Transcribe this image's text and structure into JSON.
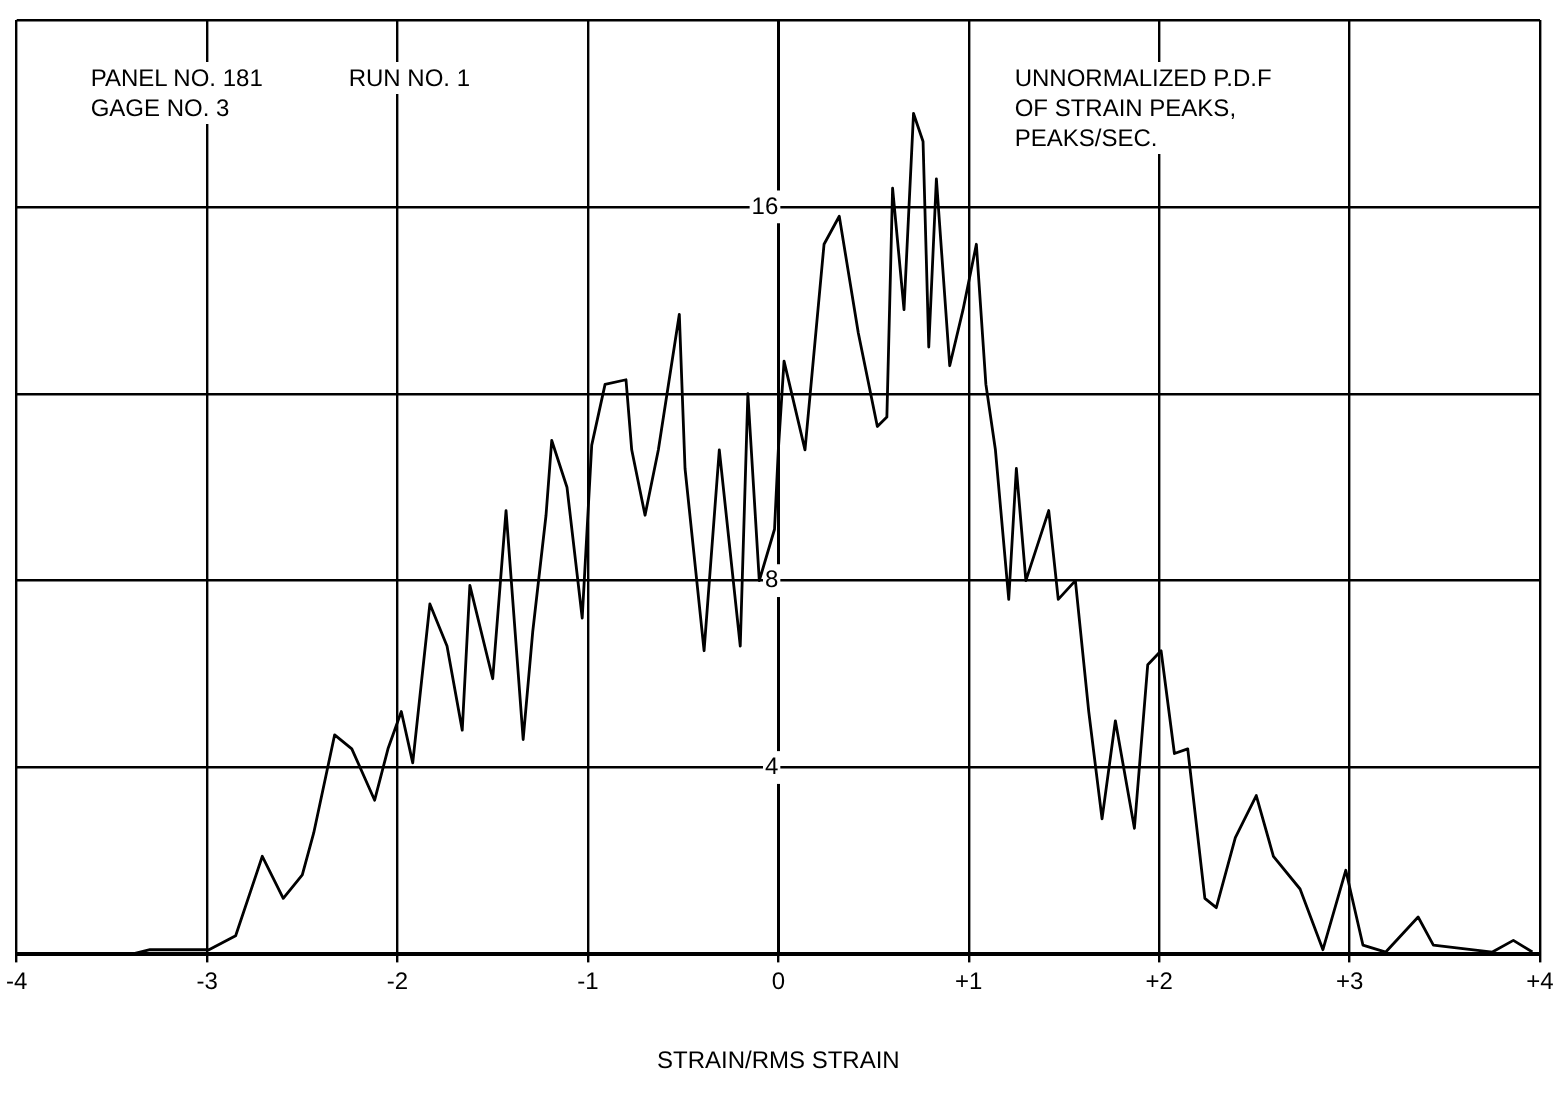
{
  "chart_data": {
    "type": "line",
    "xlabel": "STRAIN/RMS STRAIN",
    "ylabel": "UNNORMALIZED P.D.F OF STRAIN PEAKS, PEAKS/SEC.",
    "annotations": [
      "PANEL NO. 181",
      "RUN NO. 1",
      "GAGE NO. 3"
    ],
    "series": [
      {
        "color": "#000000",
        "x": [
          -3.4,
          -3.3,
          -2.99,
          -2.85,
          -2.71,
          -2.6,
          -2.5,
          -2.44,
          -2.33,
          -2.24,
          -2.12,
          -2.05,
          -1.98,
          -1.92,
          -1.83,
          -1.74,
          -1.66,
          -1.62,
          -1.5,
          -1.43,
          -1.34,
          -1.29,
          -1.22,
          -1.19,
          -1.11,
          -1.03,
          -0.98,
          -0.91,
          -0.8,
          -0.77,
          -0.7,
          -0.63,
          -0.52,
          -0.49,
          -0.39,
          -0.31,
          -0.2,
          -0.16,
          -0.1,
          -0.02,
          0.0,
          0.03,
          0.14,
          0.24,
          0.32,
          0.42,
          0.52,
          0.57,
          0.6,
          0.66,
          0.71,
          0.76,
          0.79,
          0.83,
          0.9,
          0.97,
          1.04,
          1.09,
          1.14,
          1.21,
          1.25,
          1.3,
          1.42,
          1.47,
          1.56,
          1.63,
          1.7,
          1.77,
          1.87,
          1.94,
          2.01,
          2.08,
          2.15,
          2.24,
          2.3,
          2.4,
          2.51,
          2.6,
          2.74,
          2.86,
          2.98,
          3.07,
          3.19,
          3.36,
          3.44,
          3.75,
          3.86,
          3.96
        ],
        "values": [
          0.0,
          0.1,
          0.1,
          0.4,
          2.1,
          1.2,
          1.7,
          2.6,
          4.7,
          4.4,
          3.3,
          4.4,
          5.2,
          4.1,
          7.5,
          6.6,
          4.8,
          7.9,
          5.9,
          9.5,
          4.6,
          6.9,
          9.4,
          11.0,
          10.0,
          7.2,
          10.9,
          12.2,
          12.3,
          10.8,
          9.4,
          10.8,
          13.7,
          10.4,
          6.5,
          10.8,
          6.6,
          12.0,
          8.0,
          9.1,
          10.8,
          12.7,
          10.8,
          15.2,
          15.8,
          13.3,
          11.3,
          11.5,
          16.4,
          13.8,
          18.0,
          17.4,
          13.0,
          16.6,
          12.6,
          13.8,
          15.2,
          12.2,
          10.8,
          7.6,
          10.4,
          8.0,
          9.5,
          7.6,
          8.0,
          5.2,
          2.9,
          5.0,
          2.7,
          6.2,
          6.5,
          4.3,
          4.4,
          1.2,
          1.0,
          2.5,
          3.4,
          2.1,
          1.4,
          0.1,
          1.8,
          0.2,
          0.05,
          0.8,
          0.2,
          0.05,
          0.3,
          0.05
        ]
      }
    ],
    "xlim": [
      -4,
      4
    ],
    "xticks": [
      -4,
      -3,
      -2,
      -1,
      0,
      {
        "value": 1,
        "label": "+1"
      },
      {
        "value": 2,
        "label": "+2"
      },
      {
        "value": 3,
        "label": "+3"
      },
      {
        "value": 4,
        "label": "+4"
      }
    ],
    "ylim": [
      0,
      20
    ],
    "yticks": [
      {
        "value": 0,
        "label": null
      },
      4,
      8,
      {
        "value": 12,
        "label": null
      },
      16,
      {
        "value": 20,
        "label": null
      }
    ],
    "grid": true,
    "marker": "none",
    "line_style": "solid"
  }
}
